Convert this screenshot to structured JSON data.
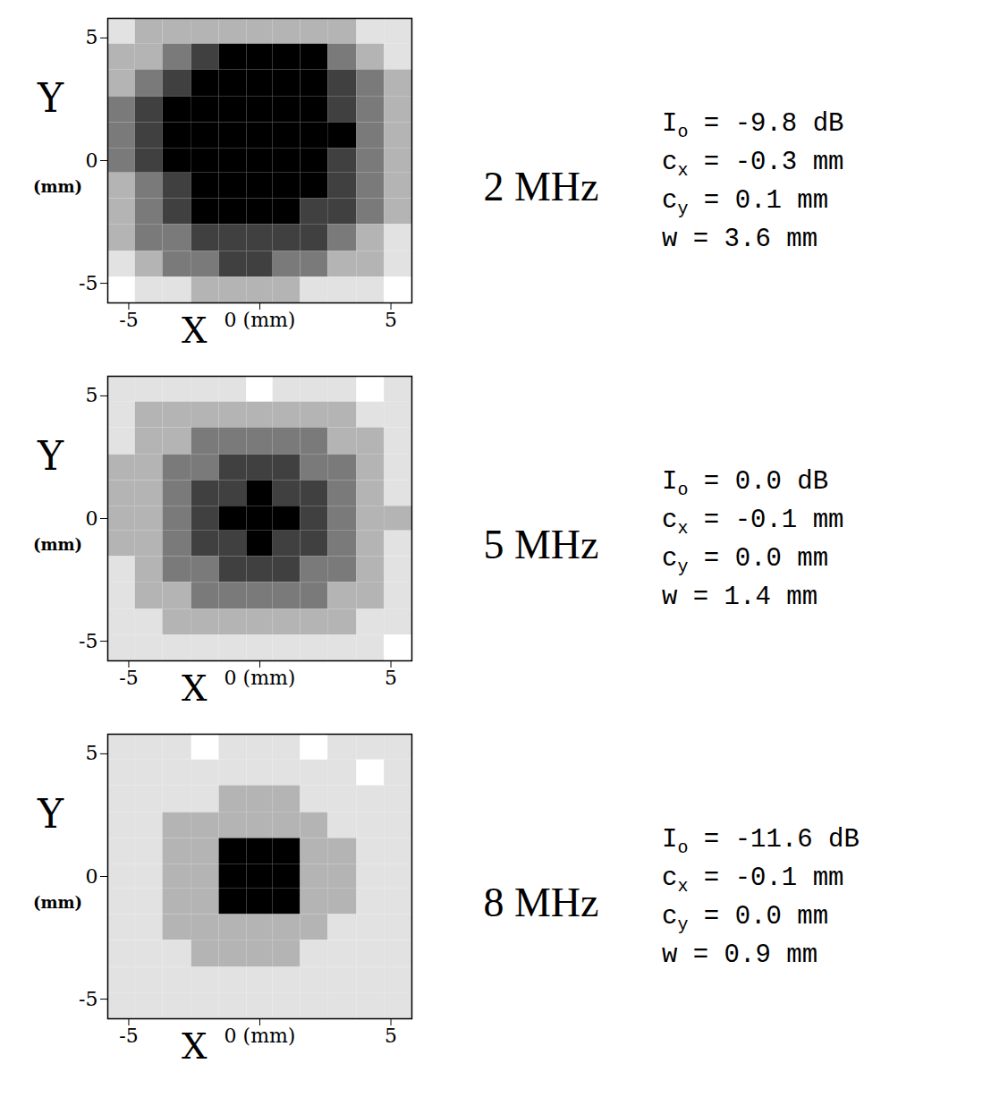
{
  "chart_data": [
    {
      "type": "heatmap",
      "title": "2 MHz",
      "x_label": "X",
      "y_label": "Y",
      "unit_label": "(mm)",
      "xlim": [
        -5.8,
        5.8
      ],
      "ylim": [
        -5.8,
        5.8
      ],
      "xticks": [
        -5,
        {
          "value": 0,
          "label": "0 (mm)"
        },
        5
      ],
      "yticks": [
        -5,
        0,
        5
      ],
      "x_edges": [
        -5.8,
        -4.75,
        -3.7,
        -2.6,
        -1.55,
        -0.5,
        0.5,
        1.55,
        2.6,
        3.7,
        4.75,
        5.8
      ],
      "y_edges": [
        5.8,
        4.75,
        3.7,
        2.6,
        1.55,
        0.5,
        -0.5,
        -1.55,
        -2.6,
        -3.7,
        -4.75,
        -5.8
      ],
      "zlim": [
        0,
        5
      ],
      "cells": [
        [
          1,
          2,
          2,
          2,
          2,
          2,
          2,
          2,
          2,
          1,
          1
        ],
        [
          2,
          2,
          3,
          4,
          5,
          5,
          5,
          5,
          3,
          2,
          1
        ],
        [
          2,
          3,
          4,
          5,
          5,
          5,
          5,
          5,
          4,
          3,
          2
        ],
        [
          3,
          4,
          5,
          5,
          5,
          5,
          5,
          5,
          4,
          3,
          2
        ],
        [
          3,
          4,
          5,
          5,
          5,
          5,
          5,
          5,
          5,
          3,
          2
        ],
        [
          3,
          4,
          5,
          5,
          5,
          5,
          5,
          5,
          4,
          3,
          2
        ],
        [
          2,
          3,
          4,
          5,
          5,
          5,
          5,
          5,
          4,
          3,
          2
        ],
        [
          2,
          3,
          4,
          5,
          5,
          5,
          5,
          4,
          4,
          3,
          2
        ],
        [
          2,
          3,
          3,
          4,
          4,
          4,
          4,
          4,
          3,
          2,
          1
        ],
        [
          1,
          2,
          3,
          3,
          4,
          4,
          3,
          3,
          2,
          2,
          1
        ],
        [
          0,
          1,
          1,
          2,
          2,
          2,
          2,
          1,
          1,
          1,
          0
        ]
      ],
      "equals_sign": "=",
      "parameters": [
        {
          "symbol": "I",
          "subscript": "o",
          "value": -9.8,
          "label": "-9.8",
          "unit": "dB"
        },
        {
          "symbol": "c",
          "subscript": "x",
          "value": -0.3,
          "label": "-0.3",
          "unit": "mm"
        },
        {
          "symbol": "c",
          "subscript": "y",
          "value": 0.1,
          "label": "0.1",
          "unit": "mm"
        },
        {
          "symbol": "w",
          "subscript": "",
          "value": 3.6,
          "label": "3.6",
          "unit": "mm"
        }
      ]
    },
    {
      "type": "heatmap",
      "title": "5 MHz",
      "x_label": "X",
      "y_label": "Y",
      "unit_label": "(mm)",
      "xlim": [
        -5.8,
        5.8
      ],
      "ylim": [
        -5.8,
        5.8
      ],
      "xticks": [
        -5,
        {
          "value": 0,
          "label": "0 (mm)"
        },
        5
      ],
      "yticks": [
        -5,
        0,
        5
      ],
      "x_edges": [
        -5.8,
        -4.75,
        -3.7,
        -2.6,
        -1.55,
        -0.5,
        0.5,
        1.55,
        2.6,
        3.7,
        4.75,
        5.8
      ],
      "y_edges": [
        5.8,
        4.75,
        3.7,
        2.6,
        1.55,
        0.5,
        -0.5,
        -1.55,
        -2.6,
        -3.7,
        -4.75,
        -5.8
      ],
      "zlim": [
        0,
        5
      ],
      "cells": [
        [
          1,
          1,
          1,
          1,
          1,
          0,
          1,
          1,
          1,
          0,
          1
        ],
        [
          1,
          2,
          2,
          2,
          2,
          2,
          2,
          2,
          2,
          1,
          1
        ],
        [
          1,
          2,
          2,
          3,
          3,
          3,
          3,
          3,
          2,
          2,
          1
        ],
        [
          2,
          2,
          3,
          3,
          4,
          4,
          4,
          3,
          3,
          2,
          1
        ],
        [
          2,
          2,
          3,
          4,
          4,
          5,
          4,
          4,
          3,
          2,
          1
        ],
        [
          2,
          2,
          3,
          4,
          5,
          5,
          5,
          4,
          3,
          2,
          2
        ],
        [
          2,
          2,
          3,
          4,
          4,
          5,
          4,
          4,
          3,
          2,
          1
        ],
        [
          1,
          2,
          3,
          3,
          4,
          4,
          4,
          3,
          3,
          2,
          1
        ],
        [
          1,
          2,
          2,
          3,
          3,
          3,
          3,
          3,
          2,
          2,
          1
        ],
        [
          1,
          1,
          2,
          2,
          2,
          2,
          2,
          2,
          2,
          1,
          1
        ],
        [
          1,
          1,
          1,
          1,
          1,
          1,
          1,
          1,
          1,
          1,
          0
        ]
      ],
      "equals_sign": "=",
      "parameters": [
        {
          "symbol": "I",
          "subscript": "o",
          "value": 0,
          "label": "0.0",
          "unit": "dB"
        },
        {
          "symbol": "c",
          "subscript": "x",
          "value": -0.1,
          "label": "-0.1",
          "unit": "mm"
        },
        {
          "symbol": "c",
          "subscript": "y",
          "value": 0,
          "label": "0.0",
          "unit": "mm"
        },
        {
          "symbol": "w",
          "subscript": "",
          "value": 1.4,
          "label": "1.4",
          "unit": "mm"
        }
      ]
    },
    {
      "type": "heatmap",
      "title": "8 MHz",
      "x_label": "X",
      "y_label": "Y",
      "unit_label": "(mm)",
      "xlim": [
        -5.8,
        5.8
      ],
      "ylim": [
        -5.8,
        5.8
      ],
      "xticks": [
        -5,
        {
          "value": 0,
          "label": "0 (mm)"
        },
        5
      ],
      "yticks": [
        -5,
        0,
        5
      ],
      "x_edges": [
        -5.8,
        -4.75,
        -3.7,
        -2.6,
        -1.55,
        -0.5,
        0.5,
        1.55,
        2.6,
        3.7,
        4.75,
        5.8
      ],
      "y_edges": [
        5.8,
        4.75,
        3.7,
        2.6,
        1.55,
        0.5,
        -0.5,
        -1.55,
        -2.6,
        -3.7,
        -4.75,
        -5.8
      ],
      "zlim": [
        0,
        5
      ],
      "cells": [
        [
          1,
          1,
          1,
          0,
          1,
          1,
          1,
          0,
          1,
          1,
          1
        ],
        [
          1,
          1,
          1,
          1,
          1,
          1,
          1,
          1,
          1,
          0,
          1
        ],
        [
          1,
          1,
          1,
          1,
          2,
          2,
          2,
          1,
          1,
          1,
          1
        ],
        [
          1,
          1,
          2,
          2,
          2,
          2,
          2,
          2,
          1,
          1,
          1
        ],
        [
          1,
          1,
          2,
          2,
          5,
          5,
          5,
          2,
          2,
          1,
          1
        ],
        [
          1,
          1,
          2,
          2,
          5,
          5,
          5,
          2,
          2,
          1,
          1
        ],
        [
          1,
          1,
          2,
          2,
          5,
          5,
          5,
          2,
          2,
          1,
          1
        ],
        [
          1,
          1,
          2,
          2,
          2,
          2,
          2,
          2,
          1,
          1,
          1
        ],
        [
          1,
          1,
          1,
          2,
          2,
          2,
          2,
          1,
          1,
          1,
          1
        ],
        [
          1,
          1,
          1,
          1,
          1,
          1,
          1,
          1,
          1,
          1,
          1
        ],
        [
          1,
          1,
          1,
          1,
          1,
          1,
          1,
          1,
          1,
          1,
          1
        ]
      ],
      "equals_sign": "=",
      "parameters": [
        {
          "symbol": "I",
          "subscript": "o",
          "value": -11.6,
          "label": "-11.6",
          "unit": "dB"
        },
        {
          "symbol": "c",
          "subscript": "x",
          "value": -0.1,
          "label": "-0.1",
          "unit": "mm"
        },
        {
          "symbol": "c",
          "subscript": "y",
          "value": 0,
          "label": "0.0",
          "unit": "mm"
        },
        {
          "symbol": "w",
          "subscript": "",
          "value": 0.9,
          "label": "0.9",
          "unit": "mm"
        }
      ]
    }
  ]
}
